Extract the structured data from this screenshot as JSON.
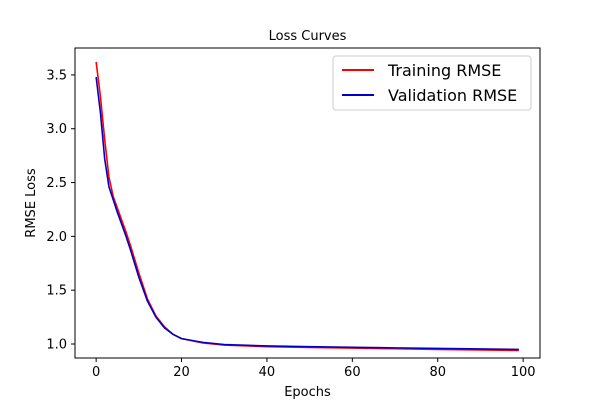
{
  "chart_data": {
    "type": "line",
    "title": "Loss Curves",
    "xlabel": "Epochs",
    "ylabel": "RMSE Loss",
    "xlim": [
      -4.95,
      103.95
    ],
    "ylim": [
      0.87,
      3.75
    ],
    "xticks": [
      0,
      20,
      40,
      60,
      80,
      100
    ],
    "xtick_labels": [
      "0",
      "20",
      "40",
      "60",
      "80",
      "100"
    ],
    "yticks": [
      1.0,
      1.5,
      2.0,
      2.5,
      3.0,
      3.5
    ],
    "ytick_labels": [
      "1.0",
      "1.5",
      "2.0",
      "2.5",
      "3.0",
      "3.5"
    ],
    "grid": false,
    "legend_position": "top-right",
    "x": [
      0,
      1,
      2,
      3,
      4,
      5,
      6,
      7,
      8,
      9,
      10,
      12,
      14,
      16,
      18,
      20,
      25,
      30,
      40,
      50,
      60,
      70,
      80,
      90,
      99
    ],
    "series": [
      {
        "name": "Training RMSE",
        "color": "#ff0000",
        "values": [
          3.62,
          3.3,
          2.9,
          2.55,
          2.37,
          2.26,
          2.15,
          2.04,
          1.92,
          1.79,
          1.66,
          1.42,
          1.26,
          1.16,
          1.09,
          1.05,
          1.01,
          0.99,
          0.975,
          0.968,
          0.962,
          0.956,
          0.95,
          0.945,
          0.94
        ]
      },
      {
        "name": "Validation RMSE",
        "color": "#0000cc",
        "values": [
          3.48,
          3.15,
          2.72,
          2.46,
          2.34,
          2.22,
          2.11,
          2.0,
          1.88,
          1.75,
          1.62,
          1.4,
          1.25,
          1.15,
          1.09,
          1.05,
          1.015,
          0.995,
          0.982,
          0.975,
          0.969,
          0.964,
          0.959,
          0.954,
          0.95
        ]
      }
    ]
  }
}
